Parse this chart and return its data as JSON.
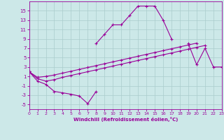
{
  "xlabel": "Windchill (Refroidissement éolien,°C)",
  "background_color": "#cce8e8",
  "grid_color": "#aacccc",
  "line_color": "#990099",
  "x_values": [
    0,
    1,
    2,
    3,
    4,
    5,
    6,
    7,
    8,
    9,
    10,
    11,
    12,
    13,
    14,
    15,
    16,
    17,
    18,
    19,
    20,
    21,
    22,
    23
  ],
  "series1": [
    2,
    0,
    -0.7,
    -2.2,
    -2.5,
    -2.8,
    -3.2,
    -4.8,
    -2.2,
    null,
    null,
    null,
    null,
    null,
    null,
    null,
    null,
    null,
    null,
    null,
    null,
    null,
    null,
    null
  ],
  "series2": [
    2,
    0.5,
    0.0,
    0.3,
    0.8,
    1.2,
    1.6,
    2.0,
    2.4,
    2.8,
    3.2,
    3.6,
    4.0,
    4.4,
    4.8,
    5.2,
    5.6,
    6.0,
    6.4,
    6.8,
    7.2,
    7.6,
    null,
    null
  ],
  "series3": [
    2,
    0.8,
    1.0,
    1.3,
    1.7,
    2.1,
    2.5,
    2.9,
    3.3,
    3.7,
    4.1,
    4.5,
    4.9,
    5.3,
    5.7,
    6.1,
    6.5,
    6.9,
    7.3,
    7.7,
    8.1,
    null,
    null,
    null
  ],
  "series4": [
    2,
    null,
    null,
    null,
    null,
    null,
    null,
    null,
    8,
    10,
    12,
    12,
    14,
    16,
    16,
    16,
    13,
    9,
    null,
    8,
    3.5,
    7,
    3,
    3
  ],
  "ylim": [
    -6,
    17
  ],
  "xlim": [
    0,
    23
  ],
  "yticks": [
    -5,
    -3,
    -1,
    1,
    3,
    5,
    7,
    9,
    11,
    13,
    15
  ],
  "xticks": [
    0,
    1,
    2,
    3,
    4,
    5,
    6,
    7,
    8,
    9,
    10,
    11,
    12,
    13,
    14,
    15,
    16,
    17,
    18,
    19,
    20,
    21,
    22,
    23
  ]
}
